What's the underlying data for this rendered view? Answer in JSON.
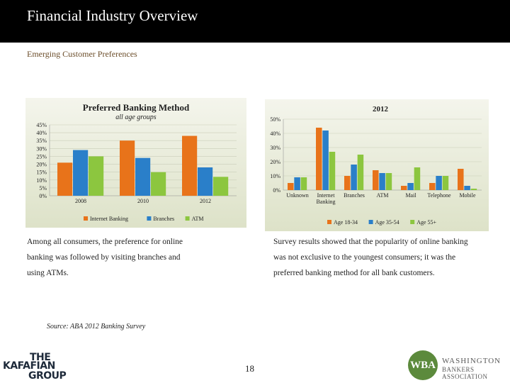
{
  "header": {
    "title": "Financial Industry Overview",
    "subtitle": "Emerging Customer Preferences"
  },
  "left_text": "Among all consumers, the preference for online banking was followed by visiting branches and using ATMs.",
  "right_text": "Survey results showed that the popularity of online banking was not exclusive to the youngest consumers; it was the preferred banking method for all bank customers.",
  "source": "Source: ABA 2012 Banking Survey",
  "page_number": "18",
  "logos": {
    "left_line1": "THE",
    "left_line2": "KAFAFIAN",
    "left_line3": "GROUP",
    "right_mark": "WBA",
    "right_line1": "WASHINGTON",
    "right_line2": "BANKERS ASSOCIATION"
  },
  "colors": {
    "orange": "#e8731a",
    "blue": "#2a7fc9",
    "green": "#8cc63f",
    "chart_bg": "#e9ecd9"
  },
  "chart_data": [
    {
      "type": "bar",
      "title": "Preferred Banking Method",
      "subtitle": "all age groups",
      "categories": [
        "2008",
        "2010",
        "2012"
      ],
      "series": [
        {
          "name": "Internet Banking",
          "values": [
            21,
            35,
            38
          ]
        },
        {
          "name": "Branches",
          "values": [
            29,
            24,
            18
          ]
        },
        {
          "name": "ATM",
          "values": [
            25,
            15,
            12
          ]
        }
      ],
      "ylim": [
        0,
        45
      ],
      "yticks": [
        "0%",
        "5%",
        "10%",
        "15%",
        "20%",
        "25%",
        "30%",
        "35%",
        "40%",
        "45%"
      ]
    },
    {
      "type": "bar",
      "title": "2012",
      "categories": [
        "Unknown",
        "Internet Banking",
        "Branches",
        "ATM",
        "Mail",
        "Telephone",
        "Mobile"
      ],
      "series": [
        {
          "name": "Age 18-34",
          "values": [
            5,
            44,
            10,
            14,
            3,
            5,
            15
          ]
        },
        {
          "name": "Age 35-54",
          "values": [
            9,
            42,
            18,
            12,
            5,
            10,
            3
          ]
        },
        {
          "name": "Age 55+",
          "values": [
            9,
            27,
            25,
            12,
            16,
            10,
            1
          ]
        }
      ],
      "ylim": [
        0,
        50
      ],
      "yticks": [
        "0%",
        "10%",
        "20%",
        "30%",
        "40%",
        "50%"
      ]
    }
  ]
}
